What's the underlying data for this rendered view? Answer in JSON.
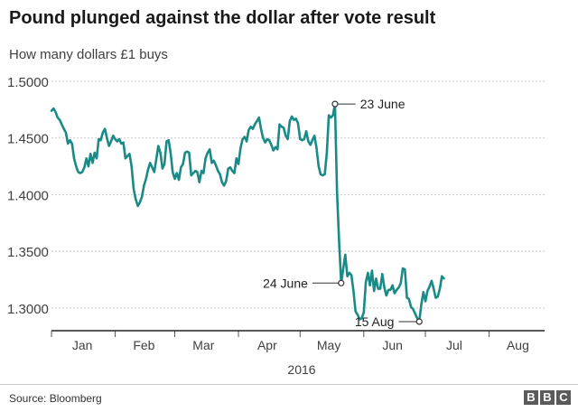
{
  "chart_data": {
    "type": "line",
    "title": "Pound plunged against the dollar after vote result",
    "subtitle": "How many dollars £1 buys",
    "xlabel": "2016",
    "ylabel": "",
    "ylim": [
      1.28,
      1.5
    ],
    "yticks": [
      "1.5000",
      "1.4500",
      "1.4000",
      "1.3500",
      "1.3000"
    ],
    "ytick_values": [
      1.5,
      1.45,
      1.4,
      1.35,
      1.3
    ],
    "xlim": [
      1,
      241
    ],
    "month_labels": [
      {
        "label": "Jan",
        "day": 16
      },
      {
        "label": "Feb",
        "day": 46
      },
      {
        "label": "Mar",
        "day": 75
      },
      {
        "label": "Apr",
        "day": 106
      },
      {
        "label": "May",
        "day": 136
      },
      {
        "label": "Jun",
        "day": 167
      },
      {
        "label": "Jul",
        "day": 197
      },
      {
        "label": "Aug",
        "day": 228
      }
    ],
    "month_boundaries": [
      1,
      32,
      61,
      92,
      122,
      153,
      183,
      214
    ],
    "line_color": "#1a8a87",
    "grid": true,
    "series": [
      {
        "points": [
          [
            1,
            1.474
          ],
          [
            2,
            1.476
          ],
          [
            3,
            1.473
          ],
          [
            4,
            1.468
          ],
          [
            5,
            1.466
          ],
          [
            6,
            1.462
          ],
          [
            7,
            1.458
          ],
          [
            8,
            1.455
          ],
          [
            9,
            1.445
          ],
          [
            10,
            1.448
          ],
          [
            11,
            1.445
          ],
          [
            12,
            1.432
          ],
          [
            13,
            1.425
          ],
          [
            14,
            1.42
          ],
          [
            15,
            1.419
          ],
          [
            16,
            1.42
          ],
          [
            17,
            1.424
          ],
          [
            18,
            1.432
          ],
          [
            19,
            1.425
          ],
          [
            20,
            1.436
          ],
          [
            21,
            1.428
          ],
          [
            22,
            1.437
          ],
          [
            23,
            1.432
          ],
          [
            24,
            1.449
          ],
          [
            25,
            1.448
          ],
          [
            26,
            1.455
          ],
          [
            27,
            1.458
          ],
          [
            28,
            1.45
          ],
          [
            29,
            1.443
          ],
          [
            30,
            1.447
          ],
          [
            31,
            1.452
          ],
          [
            32,
            1.449
          ],
          [
            33,
            1.447
          ],
          [
            34,
            1.449
          ],
          [
            35,
            1.445
          ],
          [
            36,
            1.446
          ],
          [
            37,
            1.432
          ],
          [
            38,
            1.434
          ],
          [
            39,
            1.436
          ],
          [
            40,
            1.425
          ],
          [
            41,
            1.405
          ],
          [
            42,
            1.396
          ],
          [
            43,
            1.39
          ],
          [
            44,
            1.393
          ],
          [
            45,
            1.398
          ],
          [
            46,
            1.408
          ],
          [
            47,
            1.414
          ],
          [
            48,
            1.422
          ],
          [
            49,
            1.428
          ],
          [
            50,
            1.424
          ],
          [
            51,
            1.42
          ],
          [
            52,
            1.431
          ],
          [
            53,
            1.443
          ],
          [
            54,
            1.437
          ],
          [
            55,
            1.423
          ],
          [
            56,
            1.427
          ],
          [
            57,
            1.447
          ],
          [
            58,
            1.448
          ],
          [
            59,
            1.437
          ],
          [
            60,
            1.42
          ],
          [
            61,
            1.414
          ],
          [
            62,
            1.419
          ],
          [
            63,
            1.413
          ],
          [
            64,
            1.424
          ],
          [
            65,
            1.427
          ],
          [
            66,
            1.437
          ],
          [
            67,
            1.438
          ],
          [
            68,
            1.437
          ],
          [
            69,
            1.417
          ],
          [
            70,
            1.419
          ],
          [
            71,
            1.421
          ],
          [
            72,
            1.42
          ],
          [
            73,
            1.411
          ],
          [
            74,
            1.421
          ],
          [
            75,
            1.419
          ],
          [
            76,
            1.432
          ],
          [
            77,
            1.437
          ],
          [
            78,
            1.44
          ],
          [
            79,
            1.428
          ],
          [
            80,
            1.43
          ],
          [
            81,
            1.426
          ],
          [
            82,
            1.421
          ],
          [
            83,
            1.418
          ],
          [
            84,
            1.411
          ],
          [
            85,
            1.408
          ],
          [
            86,
            1.412
          ],
          [
            87,
            1.423
          ],
          [
            88,
            1.424
          ],
          [
            89,
            1.421
          ],
          [
            90,
            1.419
          ],
          [
            91,
            1.432
          ],
          [
            92,
            1.427
          ],
          [
            93,
            1.441
          ],
          [
            94,
            1.449
          ],
          [
            95,
            1.451
          ],
          [
            96,
            1.447
          ],
          [
            97,
            1.457
          ],
          [
            98,
            1.46
          ],
          [
            99,
            1.458
          ],
          [
            100,
            1.462
          ],
          [
            101,
            1.465
          ],
          [
            102,
            1.468
          ],
          [
            103,
            1.458
          ],
          [
            104,
            1.45
          ],
          [
            105,
            1.446
          ],
          [
            106,
            1.449
          ],
          [
            107,
            1.448
          ],
          [
            108,
            1.444
          ],
          [
            109,
            1.439
          ],
          [
            110,
            1.442
          ],
          [
            111,
            1.44
          ],
          [
            112,
            1.462
          ],
          [
            113,
            1.46
          ],
          [
            114,
            1.459
          ],
          [
            115,
            1.452
          ],
          [
            116,
            1.449
          ],
          [
            117,
            1.465
          ],
          [
            118,
            1.469
          ],
          [
            119,
            1.466
          ],
          [
            120,
            1.467
          ],
          [
            121,
            1.463
          ],
          [
            122,
            1.449
          ],
          [
            123,
            1.448
          ],
          [
            124,
            1.449
          ],
          [
            125,
            1.456
          ],
          [
            126,
            1.447
          ],
          [
            127,
            1.444
          ],
          [
            128,
            1.448
          ],
          [
            129,
            1.452
          ],
          [
            130,
            1.441
          ],
          [
            131,
            1.425
          ],
          [
            132,
            1.418
          ],
          [
            133,
            1.417
          ],
          [
            134,
            1.418
          ],
          [
            135,
            1.437
          ],
          [
            136,
            1.47
          ],
          [
            137,
            1.468
          ],
          [
            138,
            1.47
          ],
          [
            139,
            1.48
          ],
          [
            140,
            1.402
          ],
          [
            141,
            1.358
          ],
          [
            142,
            1.322
          ],
          [
            143,
            1.335
          ],
          [
            144,
            1.347
          ],
          [
            145,
            1.328
          ],
          [
            146,
            1.331
          ],
          [
            147,
            1.329
          ],
          [
            148,
            1.315
          ],
          [
            149,
            1.297
          ],
          [
            150,
            1.294
          ],
          [
            151,
            1.29
          ],
          [
            152,
            1.291
          ],
          [
            153,
            1.296
          ],
          [
            154,
            1.323
          ],
          [
            155,
            1.331
          ],
          [
            156,
            1.32
          ],
          [
            157,
            1.333
          ],
          [
            158,
            1.315
          ],
          [
            159,
            1.326
          ],
          [
            160,
            1.317
          ],
          [
            161,
            1.317
          ],
          [
            162,
            1.33
          ],
          [
            163,
            1.318
          ],
          [
            164,
            1.311
          ],
          [
            165,
            1.316
          ],
          [
            166,
            1.316
          ],
          [
            167,
            1.32
          ],
          [
            168,
            1.313
          ],
          [
            169,
            1.316
          ],
          [
            170,
            1.318
          ],
          [
            171,
            1.322
          ],
          [
            172,
            1.335
          ],
          [
            173,
            1.334
          ],
          [
            174,
            1.309
          ],
          [
            175,
            1.308
          ],
          [
            176,
            1.301
          ],
          [
            177,
            1.299
          ],
          [
            178,
            1.295
          ],
          [
            179,
            1.291
          ],
          [
            180,
            1.288
          ],
          [
            181,
            1.303
          ],
          [
            182,
            1.314
          ],
          [
            183,
            1.306
          ],
          [
            184,
            1.315
          ],
          [
            185,
            1.319
          ],
          [
            186,
            1.324
          ],
          [
            187,
            1.317
          ],
          [
            188,
            1.309
          ],
          [
            189,
            1.31
          ],
          [
            190,
            1.317
          ],
          [
            191,
            1.328
          ],
          [
            192,
            1.326
          ]
        ]
      }
    ],
    "annotations": [
      {
        "text": "23 June",
        "day": 139,
        "value": 1.48,
        "side": "right",
        "label_day": 149
      },
      {
        "text": "24 June",
        "day": 142,
        "value": 1.322,
        "side": "left",
        "label_day": 128
      },
      {
        "text": "15 Aug",
        "day": 180,
        "value": 1.288,
        "side": "left",
        "label_day": 170
      }
    ]
  },
  "footer": {
    "source": "Source: Bloomberg",
    "logo_letters": [
      "B",
      "B",
      "C"
    ]
  }
}
